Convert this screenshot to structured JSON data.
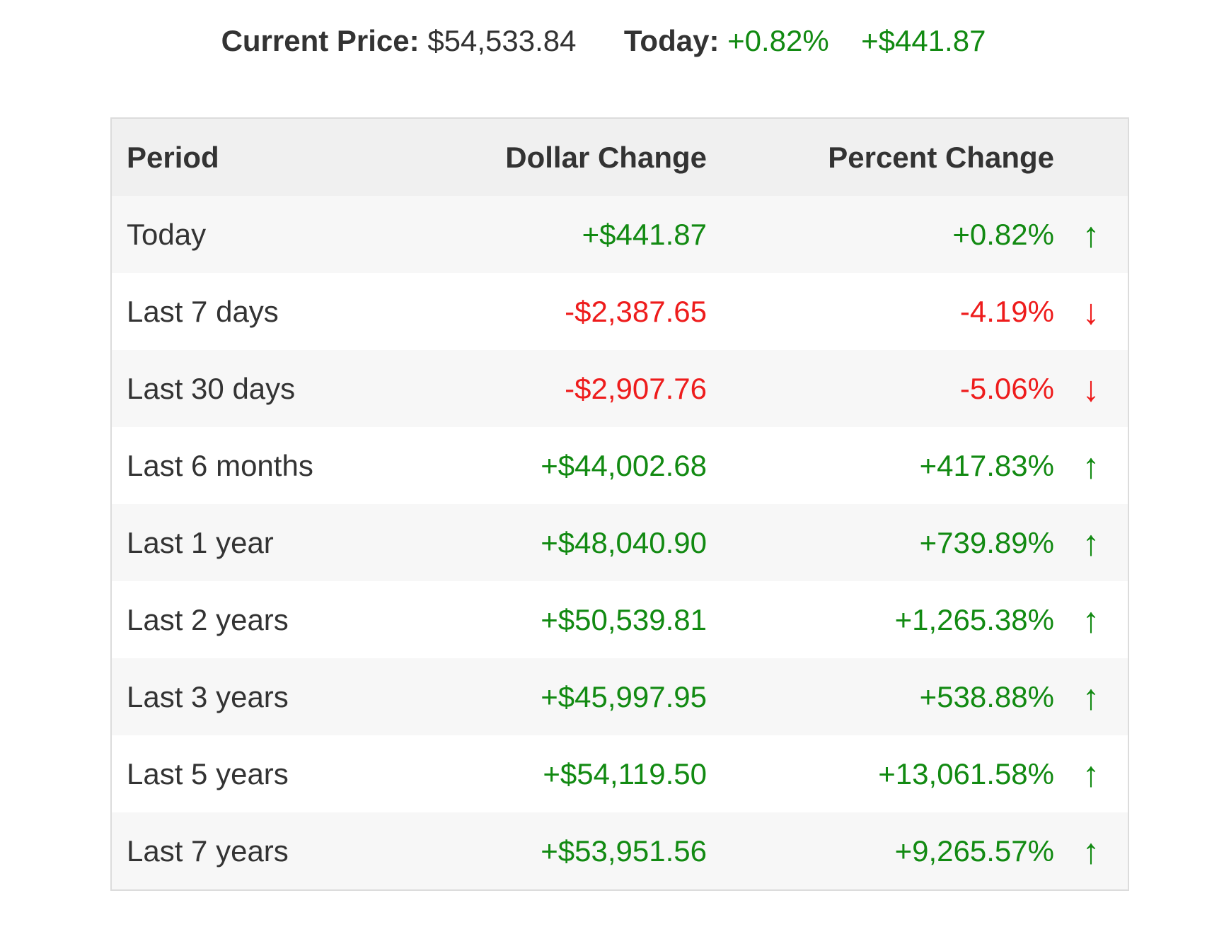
{
  "summary": {
    "current_price_label": "Current Price:",
    "current_price_value": "$54,533.84",
    "today_label": "Today:",
    "today_percent": "+0.82%",
    "today_dollar": "+$441.87"
  },
  "table": {
    "headers": {
      "period": "Period",
      "dollar": "Dollar Change",
      "percent": "Percent Change"
    },
    "rows": [
      {
        "period": "Today",
        "dollar": "+$441.87",
        "percent": "+0.82%",
        "direction": "up",
        "arrow": "↑"
      },
      {
        "period": "Last 7 days",
        "dollar": "-$2,387.65",
        "percent": "-4.19%",
        "direction": "down",
        "arrow": "↓"
      },
      {
        "period": "Last 30 days",
        "dollar": "-$2,907.76",
        "percent": "-5.06%",
        "direction": "down",
        "arrow": "↓"
      },
      {
        "period": "Last 6 months",
        "dollar": "+$44,002.68",
        "percent": "+417.83%",
        "direction": "up",
        "arrow": "↑"
      },
      {
        "period": "Last 1 year",
        "dollar": "+$48,040.90",
        "percent": "+739.89%",
        "direction": "up",
        "arrow": "↑"
      },
      {
        "period": "Last 2 years",
        "dollar": "+$50,539.81",
        "percent": "+1,265.38%",
        "direction": "up",
        "arrow": "↑"
      },
      {
        "period": "Last 3 years",
        "dollar": "+$45,997.95",
        "percent": "+538.88%",
        "direction": "up",
        "arrow": "↑"
      },
      {
        "period": "Last 5 years",
        "dollar": "+$54,119.50",
        "percent": "+13,061.58%",
        "direction": "up",
        "arrow": "↑"
      },
      {
        "period": "Last 7 years",
        "dollar": "+$53,951.56",
        "percent": "+9,265.57%",
        "direction": "up",
        "arrow": "↑"
      }
    ]
  },
  "colors": {
    "positive": "#128a12",
    "negative": "#ee1c1c",
    "text": "#333333",
    "header_bg": "#f0f0f0",
    "row_alt_bg": "#f7f7f7"
  }
}
